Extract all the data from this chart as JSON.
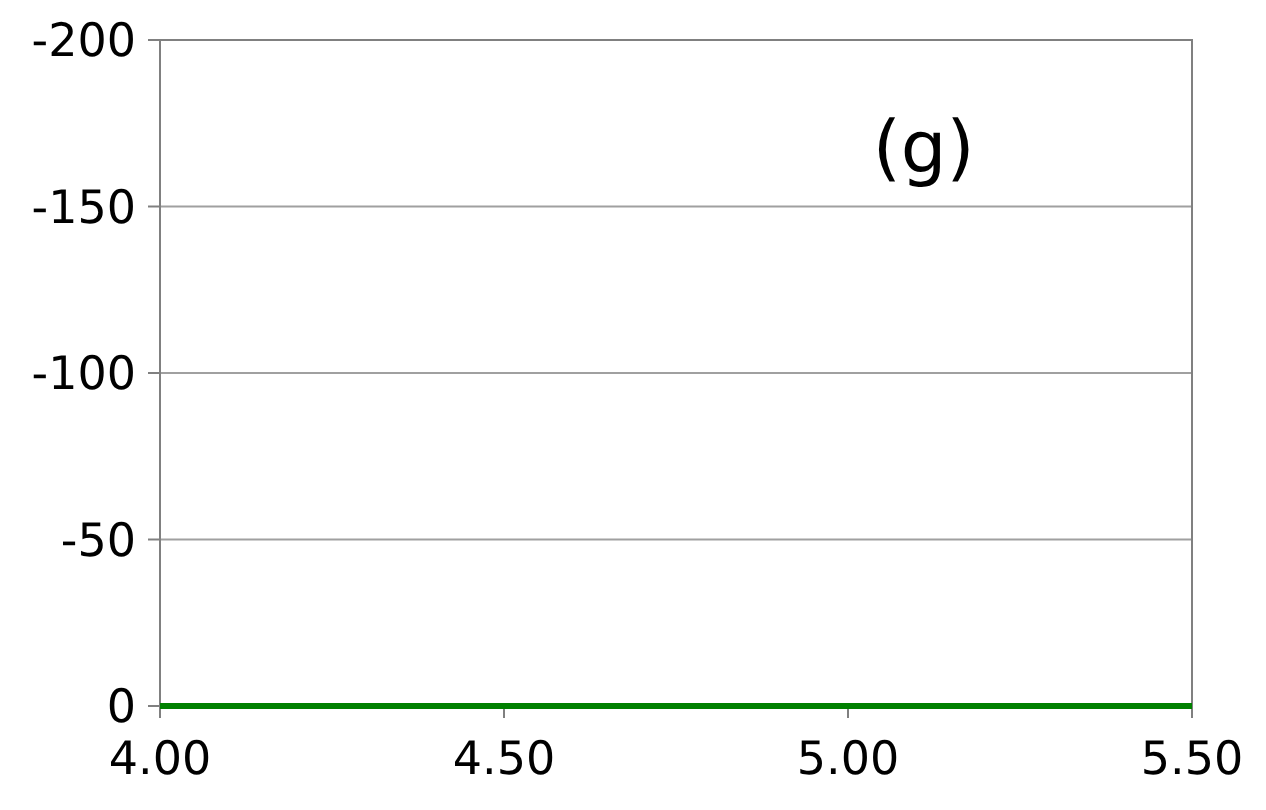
{
  "chart_data": {
    "type": "line",
    "annotations": [
      "(g)"
    ],
    "xlim": [
      4,
      5.5
    ],
    "xticks": [
      {
        "value": 4,
        "label": "4.00"
      },
      {
        "value": 4.5,
        "label": "4.50"
      },
      {
        "value": 5,
        "label": "5.00"
      },
      {
        "value": 5.5,
        "label": "5.50"
      }
    ],
    "ylim": [
      0,
      -200
    ],
    "yticks": [
      0,
      -50,
      -100,
      -150,
      -200
    ],
    "grid": "y",
    "line_style": "solid",
    "marker": "none",
    "series": [
      {
        "color": "#008000",
        "x": [
          4,
          5.5
        ],
        "values": [
          0,
          0
        ]
      }
    ]
  }
}
